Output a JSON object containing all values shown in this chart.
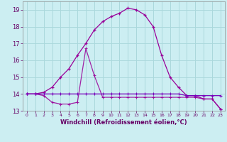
{
  "xlabel": "Windchill (Refroidissement éolien,°C)",
  "background_color": "#cceef2",
  "grid_color": "#aad8dc",
  "line_color": "#990099",
  "x_hours": [
    0,
    1,
    2,
    3,
    4,
    5,
    6,
    7,
    8,
    9,
    10,
    11,
    12,
    13,
    14,
    15,
    16,
    17,
    18,
    19,
    20,
    21,
    22,
    23
  ],
  "temp_line": [
    14.0,
    14.0,
    14.1,
    14.4,
    15.0,
    15.5,
    16.3,
    17.0,
    17.8,
    18.3,
    18.6,
    18.8,
    19.1,
    19.0,
    18.7,
    18.0,
    16.3,
    15.0,
    14.4,
    13.9,
    13.9,
    13.7,
    13.7,
    13.1
  ],
  "wind_line": [
    14.0,
    14.0,
    13.9,
    13.5,
    13.4,
    13.4,
    13.5,
    16.7,
    15.1,
    13.8,
    13.8,
    13.8,
    13.8,
    13.8,
    13.8,
    13.8,
    13.8,
    13.8,
    13.8,
    13.8,
    13.8,
    13.7,
    13.7,
    13.1
  ],
  "flat_line": [
    14.0,
    14.0,
    14.0,
    14.0,
    14.0,
    14.0,
    14.0,
    14.0,
    14.0,
    14.0,
    14.0,
    14.0,
    14.0,
    14.0,
    14.0,
    14.0,
    14.0,
    14.0,
    14.0,
    13.9,
    13.9,
    13.9,
    13.9,
    13.9
  ],
  "ylim": [
    13.0,
    19.5
  ],
  "yticks": [
    13,
    14,
    15,
    16,
    17,
    18,
    19
  ],
  "xtick_labels": [
    "0",
    "1",
    "2",
    "3",
    "4",
    "5",
    "6",
    "7",
    "8",
    "9",
    "10",
    "11",
    "12",
    "13",
    "14",
    "15",
    "16",
    "17",
    "18",
    "19",
    "20",
    "21",
    "22",
    "23"
  ]
}
